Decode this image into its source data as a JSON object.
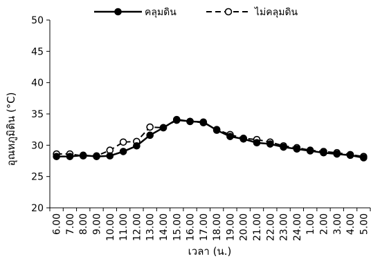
{
  "chart_data": {
    "type": "line",
    "title": "",
    "xlabel": "เวลา (น.)",
    "ylabel": "อุณหภูมิดิน (°C)",
    "ylim": [
      20,
      50
    ],
    "yticks": [
      20,
      25,
      30,
      35,
      40,
      45,
      50
    ],
    "grid": false,
    "legend_position": "top",
    "categories": [
      "6.00",
      "7.00",
      "8.00",
      "9.00",
      "10.00",
      "11.00",
      "12.00",
      "13.00",
      "14.00",
      "15.00",
      "16.00",
      "17.00",
      "18.00",
      "19.00",
      "20.00",
      "21.00",
      "22.00",
      "23.00",
      "24.00",
      "1.00",
      "2.00",
      "3.00",
      "4.00",
      "5.00"
    ],
    "series": [
      {
        "name": "คลุมดิน",
        "style": "solid",
        "marker": "filled-circle",
        "color": "#000000",
        "values": [
          28.2,
          28.2,
          28.4,
          28.2,
          28.3,
          29.0,
          29.9,
          31.6,
          32.8,
          34.1,
          33.8,
          33.7,
          32.4,
          31.4,
          31.0,
          30.4,
          30.2,
          29.7,
          29.4,
          29.1,
          28.8,
          28.6,
          28.4,
          28.0
        ]
      },
      {
        "name": "ไม่คลุมดิน",
        "style": "dashed",
        "marker": "open-circle",
        "color": "#000000",
        "values": [
          28.6,
          28.6,
          28.3,
          28.3,
          29.2,
          30.5,
          30.6,
          32.9,
          32.8,
          34.0,
          33.8,
          33.6,
          32.5,
          31.7,
          31.1,
          30.9,
          30.5,
          29.9,
          29.6,
          29.2,
          29.0,
          28.8,
          28.5,
          28.2
        ]
      }
    ]
  }
}
